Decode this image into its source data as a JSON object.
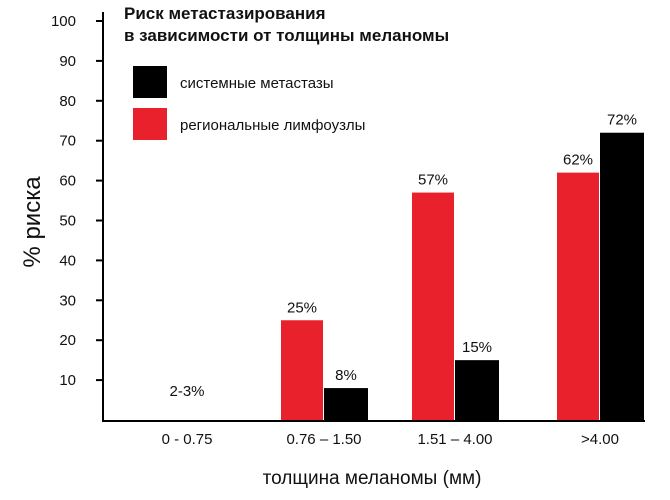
{
  "chart_data": {
    "type": "bar",
    "title_lines": [
      "Риск метастазирования",
      "в зависимости от толщины меланомы"
    ],
    "xlabel": "толщина меланомы (мм)",
    "ylabel": "% риска",
    "ylim": [
      0,
      100
    ],
    "yticks": [
      10,
      20,
      30,
      40,
      50,
      60,
      70,
      80,
      90,
      100
    ],
    "grid": false,
    "legend_position": "top-left",
    "categories": [
      "0 - 0.75",
      "0.76 – 1.50",
      "1.51 – 4.00",
      ">4.00"
    ],
    "series": [
      {
        "name": "региональные лимфоузлы",
        "color": "#e8212c",
        "values": [
          0,
          25,
          57,
          62
        ]
      },
      {
        "name": "системные метастазы",
        "color": "#000000",
        "values": [
          0,
          8,
          15,
          72
        ]
      }
    ],
    "legend_order": [
      1,
      0
    ],
    "annotations": [
      {
        "category": 0,
        "text": "2-3%"
      },
      {
        "category": 1,
        "series": 0,
        "text": "25%"
      },
      {
        "category": 1,
        "series": 1,
        "text": "8%"
      },
      {
        "category": 2,
        "series": 0,
        "text": "57%"
      },
      {
        "category": 2,
        "series": 1,
        "text": "15%"
      },
      {
        "category": 3,
        "series": 0,
        "text": "62%"
      },
      {
        "category": 3,
        "series": 1,
        "text": "72%"
      }
    ]
  }
}
